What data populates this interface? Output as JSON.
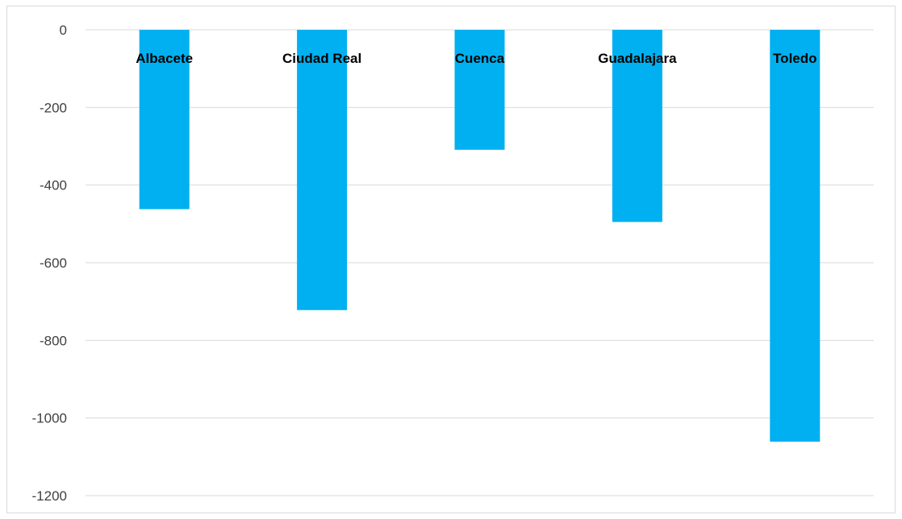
{
  "chart_data": {
    "type": "bar",
    "categories": [
      "Albacete",
      "Ciudad Real",
      "Cuenca",
      "Guadalajara",
      "Toledo"
    ],
    "values": [
      -462,
      -722,
      -309,
      -495,
      -1061
    ],
    "title": "",
    "xlabel": "",
    "ylabel": "",
    "ylim": [
      -1200,
      0
    ],
    "yticks": [
      0,
      -200,
      -400,
      -600,
      -800,
      -1000,
      -1200
    ],
    "grid": true,
    "legend": "none",
    "bar_color": "#00B0F0",
    "gridline_color": "#d9d9d9",
    "category_labels_position": "top, inside plot near zero line"
  }
}
